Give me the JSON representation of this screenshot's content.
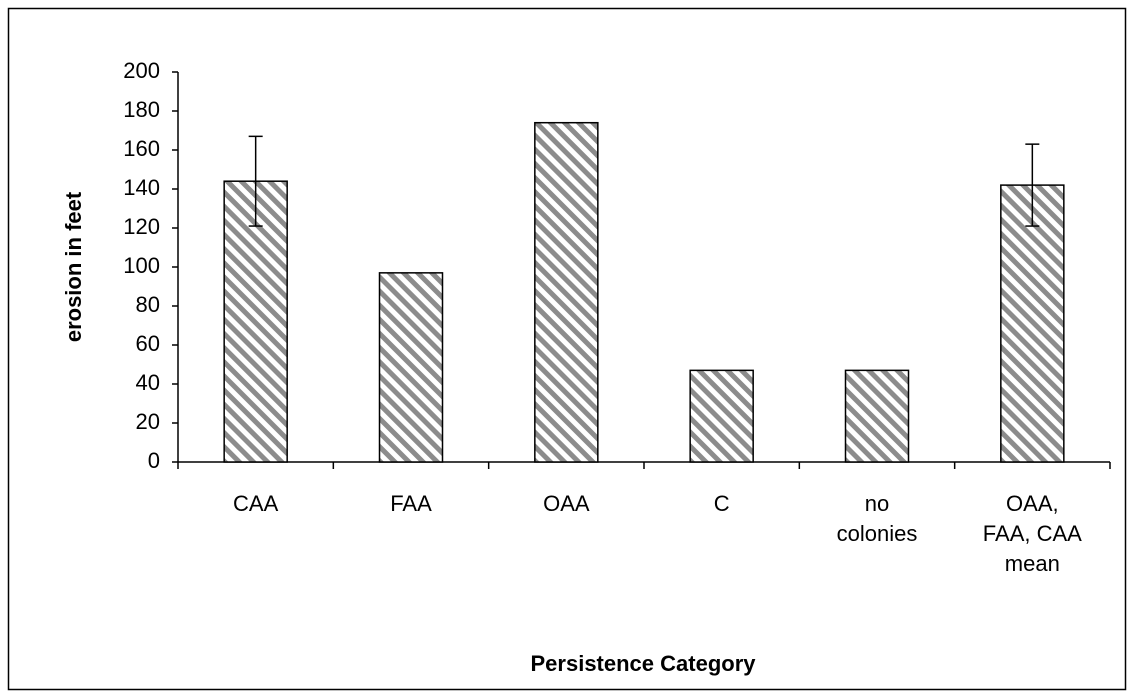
{
  "chart_data": {
    "type": "bar",
    "xlabel": "Persistence Category",
    "ylabel": "erosion in feet",
    "categories": [
      "CAA",
      "FAA",
      "OAA",
      "C",
      "no colonies",
      "OAA, FAA, CAA mean"
    ],
    "values": [
      144,
      97,
      174,
      47,
      47,
      142
    ],
    "errors": [
      23,
      null,
      null,
      null,
      null,
      21
    ],
    "color": "#8c8c8c",
    "ylim": [
      0,
      200
    ],
    "yticks": [
      0,
      20,
      40,
      60,
      80,
      100,
      120,
      140,
      160,
      180,
      200
    ],
    "grid": false
  }
}
